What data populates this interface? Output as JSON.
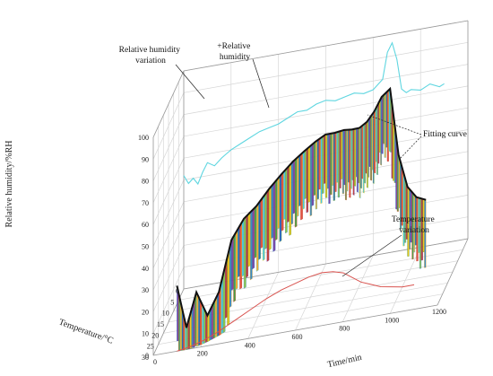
{
  "chart_data": {
    "type": "3d-line-surface",
    "title": "",
    "xlabel": "Temperature/°C",
    "ylabel": "Time/min",
    "zlabel": "Relative humidity/%RH",
    "xticks": [
      0,
      5,
      10,
      15,
      20,
      25,
      30
    ],
    "yticks": [
      0,
      200,
      400,
      600,
      800,
      1000,
      1200
    ],
    "zticks": [
      0,
      10,
      20,
      30,
      40,
      50,
      60,
      70,
      80,
      90,
      100
    ],
    "xlim": [
      0,
      30
    ],
    "ylim": [
      0,
      1200
    ],
    "zlim": [
      0,
      100
    ],
    "grid": true,
    "annotations": [
      {
        "id": "rh-variation",
        "text_lines": [
          "Relative humidity",
          "variation"
        ]
      },
      {
        "id": "rh-series",
        "text_lines": [
          "+Relative",
          "humidity"
        ]
      },
      {
        "id": "fitting-curve",
        "text_lines": [
          "Fitting curve"
        ]
      },
      {
        "id": "temp-variation",
        "text_lines": [
          "Temperature",
          "variation"
        ]
      }
    ],
    "series": [
      {
        "role": "humidity-projection",
        "color": "#5fd6e0",
        "time": [
          0,
          20,
          40,
          60,
          80,
          100,
          130,
          160,
          200,
          240,
          280,
          320,
          360,
          400,
          440,
          480,
          520,
          560,
          600,
          640,
          680,
          720,
          760,
          800,
          840,
          860,
          880,
          900,
          920,
          940,
          960,
          1000,
          1040,
          1080,
          1100
        ],
        "rh": [
          52,
          48,
          50,
          47,
          52,
          56,
          54,
          57,
          60,
          62,
          64,
          66,
          67,
          68,
          70,
          72,
          72,
          74,
          75,
          74,
          75,
          76,
          75,
          76,
          80,
          92,
          96,
          88,
          74,
          72,
          73,
          72,
          74,
          72,
          73
        ]
      },
      {
        "role": "temperature-projection",
        "color": "#d9534f",
        "time": [
          100,
          150,
          200,
          250,
          300,
          350,
          400,
          450,
          500,
          550,
          600,
          650,
          700,
          750,
          800,
          850,
          900,
          950,
          1000,
          1050
        ],
        "temp": [
          30,
          29,
          27,
          24,
          20,
          16,
          12,
          9,
          7,
          5,
          4,
          4.5,
          6,
          9,
          12,
          14,
          16,
          17,
          18,
          18
        ]
      },
      {
        "role": "fitting-curve",
        "color": "#111111",
        "time": [
          100,
          140,
          180,
          220,
          260,
          300,
          340,
          380,
          420,
          460,
          500,
          540,
          580,
          620,
          660,
          700,
          740,
          780,
          820,
          860,
          900,
          940,
          980,
          1020,
          1060,
          1100
        ],
        "temp": [
          30,
          30,
          29.5,
          28,
          26,
          23,
          20,
          17,
          14,
          11,
          9,
          7,
          5.5,
          5,
          5,
          5.5,
          7,
          9,
          11,
          13,
          15,
          16,
          17,
          17.5,
          18,
          18
        ],
        "rh": [
          30,
          10,
          25,
          12,
          20,
          40,
          46,
          48,
          52,
          55,
          58,
          60,
          62,
          64,
          64,
          65,
          66,
          68,
          72,
          78,
          86,
          90,
          60,
          45,
          40,
          38
        ]
      }
    ]
  },
  "palette": [
    "#7a3fa0",
    "#3f9c3a",
    "#f5a623",
    "#1f5fbf",
    "#e24b3b",
    "#3cc7e6",
    "#8cc63f",
    "#c0392b",
    "#f1c40f",
    "#2e86c1"
  ]
}
